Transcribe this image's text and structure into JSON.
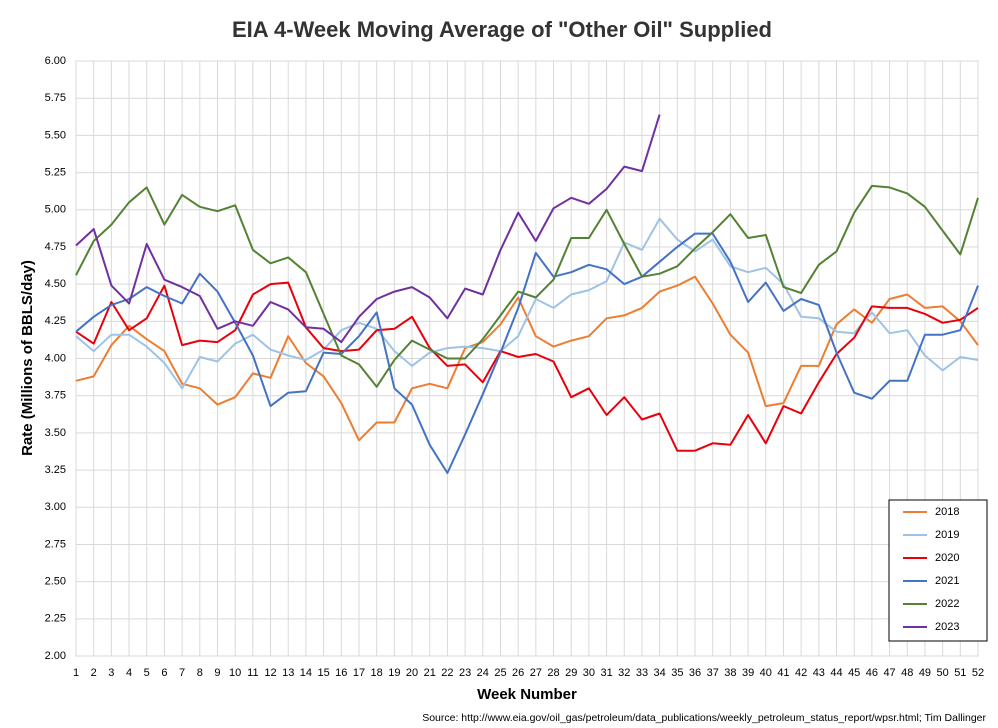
{
  "chart_data": {
    "type": "line",
    "title": "EIA 4-Week Moving Average of \"Other Oil\" Supplied",
    "x_label": "Week Number",
    "y_label": "Rate (Millions of BBLS/day)",
    "source": "Source: http://www.eia.gov/oil_gas/petroleum/data_publications/weekly_petroleum_status_report/wpsr.html; Tim Dallinger",
    "x": [
      1,
      2,
      3,
      4,
      5,
      6,
      7,
      8,
      9,
      10,
      11,
      12,
      13,
      14,
      15,
      16,
      17,
      18,
      19,
      20,
      21,
      22,
      23,
      24,
      25,
      26,
      27,
      28,
      29,
      30,
      31,
      32,
      33,
      34,
      35,
      36,
      37,
      38,
      39,
      40,
      41,
      42,
      43,
      44,
      45,
      46,
      47,
      48,
      49,
      50,
      51,
      52
    ],
    "xlim": [
      1,
      52
    ],
    "xticks": [
      1,
      2,
      3,
      4,
      5,
      6,
      7,
      8,
      9,
      10,
      11,
      12,
      13,
      14,
      15,
      16,
      17,
      18,
      19,
      20,
      21,
      22,
      23,
      24,
      25,
      26,
      27,
      28,
      29,
      30,
      31,
      32,
      33,
      34,
      35,
      36,
      37,
      38,
      39,
      40,
      41,
      42,
      43,
      44,
      45,
      46,
      47,
      48,
      49,
      50,
      51,
      52
    ],
    "ylim": [
      2,
      6
    ],
    "yticks": [
      {
        "value": 2,
        "label": "2.00"
      },
      {
        "value": 2.25,
        "label": "2.25"
      },
      {
        "value": 2.5,
        "label": "2.50"
      },
      {
        "value": 2.75,
        "label": "2.75"
      },
      {
        "value": 3,
        "label": "3.00"
      },
      {
        "value": 3.25,
        "label": "3.25"
      },
      {
        "value": 3.5,
        "label": "3.50"
      },
      {
        "value": 3.75,
        "label": "3.75"
      },
      {
        "value": 4,
        "label": "4.00"
      },
      {
        "value": 4.25,
        "label": "4.25"
      },
      {
        "value": 4.5,
        "label": "4.50"
      },
      {
        "value": 4.75,
        "label": "4.75"
      },
      {
        "value": 5,
        "label": "5.00"
      },
      {
        "value": 5.25,
        "label": "5.25"
      },
      {
        "value": 5.5,
        "label": "5.50"
      },
      {
        "value": 5.75,
        "label": "5.75"
      },
      {
        "value": 6,
        "label": "6.00"
      }
    ],
    "grid": true,
    "legend": "lower right",
    "series": [
      {
        "name": "2018",
        "color": "#ed7d31",
        "values": [
          3.85,
          3.88,
          4.09,
          4.22,
          4.13,
          4.05,
          3.83,
          3.8,
          3.69,
          3.74,
          3.9,
          3.87,
          4.15,
          3.97,
          3.88,
          3.7,
          3.45,
          3.57,
          3.57,
          3.8,
          3.83,
          3.8,
          4.07,
          4.11,
          4.23,
          4.41,
          4.15,
          4.08,
          4.12,
          4.15,
          4.27,
          4.29,
          4.34,
          4.45,
          4.49,
          4.55,
          4.37,
          4.16,
          4.04,
          3.68,
          3.7,
          3.95,
          3.95,
          4.23,
          4.33,
          4.24,
          4.4,
          4.43,
          4.34,
          4.35,
          4.25,
          4.09
        ]
      },
      {
        "name": "2019",
        "color": "#9dc3e6",
        "values": [
          4.15,
          4.05,
          4.16,
          4.16,
          4.08,
          3.97,
          3.8,
          4.01,
          3.98,
          4.1,
          4.16,
          4.06,
          4.02,
          3.99,
          4.06,
          4.19,
          4.24,
          4.2,
          4.05,
          3.95,
          4.04,
          4.07,
          4.08,
          4.07,
          4.05,
          4.15,
          4.4,
          4.34,
          4.43,
          4.46,
          4.52,
          4.78,
          4.73,
          4.94,
          4.8,
          4.72,
          4.8,
          4.62,
          4.58,
          4.61,
          4.5,
          4.28,
          4.27,
          4.18,
          4.17,
          4.31,
          4.17,
          4.19,
          4.02,
          3.92,
          4.01,
          3.99
        ]
      },
      {
        "name": "2020",
        "color": "#e8000b",
        "values": [
          4.18,
          4.1,
          4.38,
          4.19,
          4.27,
          4.49,
          4.09,
          4.12,
          4.11,
          4.19,
          4.43,
          4.5,
          4.51,
          4.21,
          4.07,
          4.05,
          4.06,
          4.19,
          4.2,
          4.28,
          4.07,
          3.95,
          3.96,
          3.84,
          4.05,
          4.01,
          4.03,
          3.98,
          3.74,
          3.8,
          3.62,
          3.74,
          3.59,
          3.63,
          3.38,
          3.38,
          3.43,
          3.42,
          3.62,
          3.43,
          3.68,
          3.63,
          3.84,
          4.03,
          4.14,
          4.35,
          4.34,
          4.34,
          4.3,
          4.24,
          4.26,
          4.34
        ]
      },
      {
        "name": "2021",
        "color": "#4472c4",
        "values": [
          4.18,
          4.28,
          4.36,
          4.4,
          4.48,
          4.42,
          4.37,
          4.57,
          4.45,
          4.24,
          4.02,
          3.68,
          3.77,
          3.78,
          4.04,
          4.03,
          4.15,
          4.31,
          3.8,
          3.69,
          3.42,
          3.23,
          3.49,
          3.76,
          4.04,
          4.34,
          4.71,
          4.55,
          4.58,
          4.63,
          4.6,
          4.5,
          4.55,
          4.65,
          4.75,
          4.84,
          4.84,
          4.65,
          4.38,
          4.51,
          4.32,
          4.4,
          4.36,
          4.04,
          3.77,
          3.73,
          3.85,
          3.85,
          4.16,
          4.16,
          4.19,
          4.49
        ]
      },
      {
        "name": "2022",
        "color": "#548235",
        "values": [
          4.56,
          4.79,
          4.9,
          5.05,
          5.15,
          4.9,
          5.1,
          5.02,
          4.99,
          5.03,
          4.73,
          4.64,
          4.68,
          4.58,
          4.3,
          4.02,
          3.96,
          3.81,
          3.99,
          4.12,
          4.06,
          4.0,
          4.0,
          4.13,
          4.29,
          4.45,
          4.41,
          4.53,
          4.81,
          4.81,
          5.0,
          4.77,
          4.55,
          4.57,
          4.62,
          4.74,
          4.85,
          4.97,
          4.81,
          4.83,
          4.48,
          4.44,
          4.63,
          4.72,
          4.98,
          5.16,
          5.15,
          5.11,
          5.02,
          4.86,
          4.7,
          5.08
        ]
      },
      {
        "name": "2023",
        "color": "#7030a0",
        "values": [
          4.76,
          4.87,
          4.49,
          4.37,
          4.77,
          4.53,
          4.48,
          4.42,
          4.2,
          4.25,
          4.22,
          4.38,
          4.33,
          4.21,
          4.2,
          4.11,
          4.28,
          4.4,
          4.45,
          4.48,
          4.41,
          4.27,
          4.47,
          4.43,
          4.73,
          4.98,
          4.79,
          5.01,
          5.08,
          5.04,
          5.14,
          5.29,
          5.26,
          5.64,
          null,
          null,
          null,
          null,
          null,
          null,
          null,
          null,
          null,
          null,
          null,
          null,
          null,
          null,
          null,
          null,
          null,
          null
        ]
      }
    ]
  }
}
